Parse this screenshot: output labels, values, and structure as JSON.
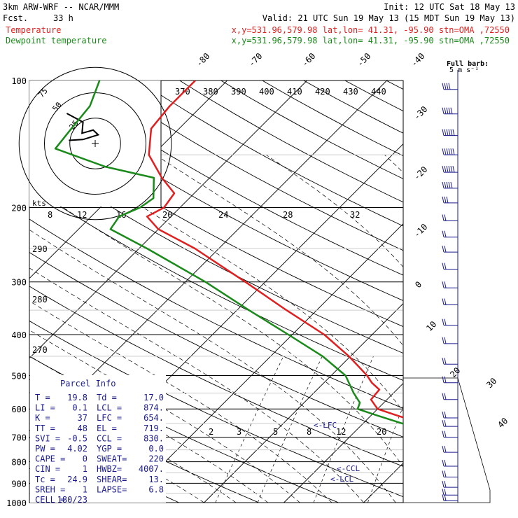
{
  "header": {
    "model": "3km ARW-WRF -- NCAR/MMM",
    "fcst_label": "Fcst.",
    "fcst_value": "33 h",
    "init": "Init: 12 UTC Sat 18 May 13",
    "valid": "Valid: 21 UTC Sun 19 May 13 (15 MDT Sun 19 May 13)",
    "temp_label": "Temperature",
    "dew_label": "Dewpoint temperature",
    "temp_loc": "x,y=531.96,579.98   lat,lon= 41.31, -95.90  stn=OMA ,72550",
    "dew_loc": "x,y=531.96,579.98   lat,lon= 41.31, -95.90  stn=OMA ,72550"
  },
  "colors": {
    "temperature": "#e02020",
    "dewpoint": "#1a8a1a",
    "wind": "#1a1a8c",
    "parcel": "#1a1a8c",
    "lcl_text": "#1a1a8c"
  },
  "barb_legend": {
    "title": "Full barb:",
    "value": "5 m s⁻¹"
  },
  "hodograph": {
    "units": "kts",
    "ring_labels": [
      "75",
      "50",
      "25"
    ]
  },
  "parcel_info": {
    "title": "Parcel Info",
    "rows": [
      [
        "T  =",
        "19.8",
        "Td =",
        "17.0"
      ],
      [
        "LI =",
        "0.1",
        "LCL =",
        "874."
      ],
      [
        "K  =",
        "37",
        "LFC =",
        "654."
      ],
      [
        "TT =",
        "48",
        "EL =",
        "719."
      ],
      [
        "SVI =",
        "-0.5",
        "CCL =",
        "830."
      ],
      [
        "PW =",
        "4.02",
        "YGP =",
        "0.0"
      ],
      [
        "CAPE =",
        "0",
        "SWEAT=",
        "220"
      ],
      [
        "CIN =",
        "1",
        "HWBZ=",
        "4007."
      ],
      [
        "Tc =",
        "24.9",
        "SHEAR=",
        "13."
      ],
      [
        "SREH =",
        "1",
        "LAPSE=",
        "6.8"
      ],
      [
        "CELL =",
        "180/23",
        "",
        ""
      ]
    ]
  },
  "level_markers": {
    "lfc": "<-LFC",
    "ccl": "<-CCL",
    "lcl": "<-LCL"
  },
  "chart_data": {
    "type": "line",
    "y_axis": {
      "label": "",
      "pressure_levels_hPa": [
        100,
        200,
        300,
        400,
        500,
        600,
        700,
        800,
        900,
        1000
      ],
      "log_scale": true,
      "ylim": [
        1000,
        100
      ]
    },
    "isotherm_labels_C": [
      "-80",
      "-70",
      "-60",
      "-50",
      "-40",
      "-30",
      "-20",
      "-10",
      "0",
      "10",
      "20",
      "30",
      "40"
    ],
    "theta_labels_K": [
      "370",
      "380",
      "390",
      "400",
      "410",
      "420",
      "430",
      "440"
    ],
    "theta_labels_left_K": [
      "290",
      "280",
      "270"
    ],
    "mixing_ratio_labels_upper": [
      "8",
      "12",
      "16",
      "20",
      "24",
      "28",
      "32"
    ],
    "mixing_ratio_labels_lower": [
      "2",
      "3",
      "5",
      "8",
      "12",
      "20"
    ],
    "series": [
      {
        "name": "Temperature",
        "points_p_T": [
          [
            1000,
            27.3
          ],
          [
            975,
            26.1
          ],
          [
            950,
            24.5
          ],
          [
            925,
            23.0
          ],
          [
            900,
            21.7
          ],
          [
            875,
            20.0
          ],
          [
            850,
            18.6
          ],
          [
            825,
            17.7
          ],
          [
            800,
            16.5
          ],
          [
            775,
            15.2
          ],
          [
            750,
            13.6
          ],
          [
            725,
            12.3
          ],
          [
            700,
            10.8
          ],
          [
            650,
            7.5
          ],
          [
            620,
            3.0
          ],
          [
            600,
            0.0
          ],
          [
            570,
            -2.0
          ],
          [
            540,
            -2.2
          ],
          [
            520,
            -4.0
          ],
          [
            500,
            -5.5
          ],
          [
            450,
            -10.2
          ],
          [
            400,
            -16.0
          ],
          [
            350,
            -23.8
          ],
          [
            300,
            -32.5
          ],
          [
            250,
            -43.0
          ],
          [
            225,
            -50.0
          ],
          [
            210,
            -53.0
          ],
          [
            200,
            -52.0
          ],
          [
            185,
            -52.5
          ],
          [
            170,
            -56.0
          ],
          [
            150,
            -60.5
          ],
          [
            130,
            -63.5
          ],
          [
            115,
            -64.0
          ],
          [
            100,
            -64.0
          ]
        ]
      },
      {
        "name": "Dewpoint temperature",
        "points_p_T": [
          [
            1000,
            20.0
          ],
          [
            975,
            19.2
          ],
          [
            950,
            18.5
          ],
          [
            925,
            18.5
          ],
          [
            900,
            18.2
          ],
          [
            875,
            17.8
          ],
          [
            850,
            17.5
          ],
          [
            800,
            16.2
          ],
          [
            750,
            14.5
          ],
          [
            700,
            10.8
          ],
          [
            650,
            5.0
          ],
          [
            620,
            0.5
          ],
          [
            600,
            -2.5
          ],
          [
            580,
            -3.0
          ],
          [
            550,
            -5.0
          ],
          [
            500,
            -8.2
          ],
          [
            450,
            -13.5
          ],
          [
            400,
            -20.5
          ],
          [
            350,
            -28.5
          ],
          [
            300,
            -37.5
          ],
          [
            250,
            -49.0
          ],
          [
            225,
            -56.0
          ],
          [
            210,
            -56.5
          ],
          [
            200,
            -55.0
          ],
          [
            190,
            -54.5
          ],
          [
            170,
            -57.0
          ],
          [
            160,
            -64.5
          ],
          [
            145,
            -73.0
          ],
          [
            130,
            -73.5
          ],
          [
            115,
            -74.0
          ],
          [
            100,
            -76.0
          ]
        ]
      },
      {
        "name": "Parcel",
        "points_p_T": [
          [
            1000,
            25.0
          ],
          [
            950,
            24.0
          ],
          [
            900,
            22.5
          ],
          [
            875,
            21.0
          ],
          [
            850,
            19.8
          ],
          [
            800,
            17.2
          ],
          [
            750,
            14.0
          ],
          [
            700,
            10.7
          ]
        ]
      }
    ],
    "hodograph_points_kts": [
      [
        -28,
        38
      ],
      [
        -12,
        27
      ],
      [
        -13,
        13
      ],
      [
        -2,
        17
      ],
      [
        3,
        11
      ],
      [
        -12,
        5
      ],
      [
        -26,
        4
      ]
    ],
    "wind_barbs": [
      {
        "p": 105,
        "spd_ms": 20
      },
      {
        "p": 120,
        "spd_ms": 25
      },
      {
        "p": 135,
        "spd_ms": 30
      },
      {
        "p": 150,
        "spd_ms": 35
      },
      {
        "p": 165,
        "spd_ms": 30
      },
      {
        "p": 180,
        "spd_ms": 25
      },
      {
        "p": 195,
        "spd_ms": 15
      },
      {
        "p": 215,
        "spd_ms": 10
      },
      {
        "p": 235,
        "spd_ms": 10
      },
      {
        "p": 255,
        "spd_ms": 10
      },
      {
        "p": 280,
        "spd_ms": 10
      },
      {
        "p": 310,
        "spd_ms": 10
      },
      {
        "p": 340,
        "spd_ms": 10
      },
      {
        "p": 380,
        "spd_ms": 10
      },
      {
        "p": 420,
        "spd_ms": 10
      },
      {
        "p": 470,
        "spd_ms": 10
      },
      {
        "p": 520,
        "spd_ms": 10
      },
      {
        "p": 570,
        "spd_ms": 10
      },
      {
        "p": 630,
        "spd_ms": 10
      },
      {
        "p": 660,
        "spd_ms": 10
      },
      {
        "p": 700,
        "spd_ms": 10
      },
      {
        "p": 760,
        "spd_ms": 10
      },
      {
        "p": 820,
        "spd_ms": 10
      },
      {
        "p": 870,
        "spd_ms": 10
      },
      {
        "p": 920,
        "spd_ms": 10
      },
      {
        "p": 960,
        "spd_ms": 10
      },
      {
        "p": 990,
        "spd_ms": 10
      }
    ]
  }
}
